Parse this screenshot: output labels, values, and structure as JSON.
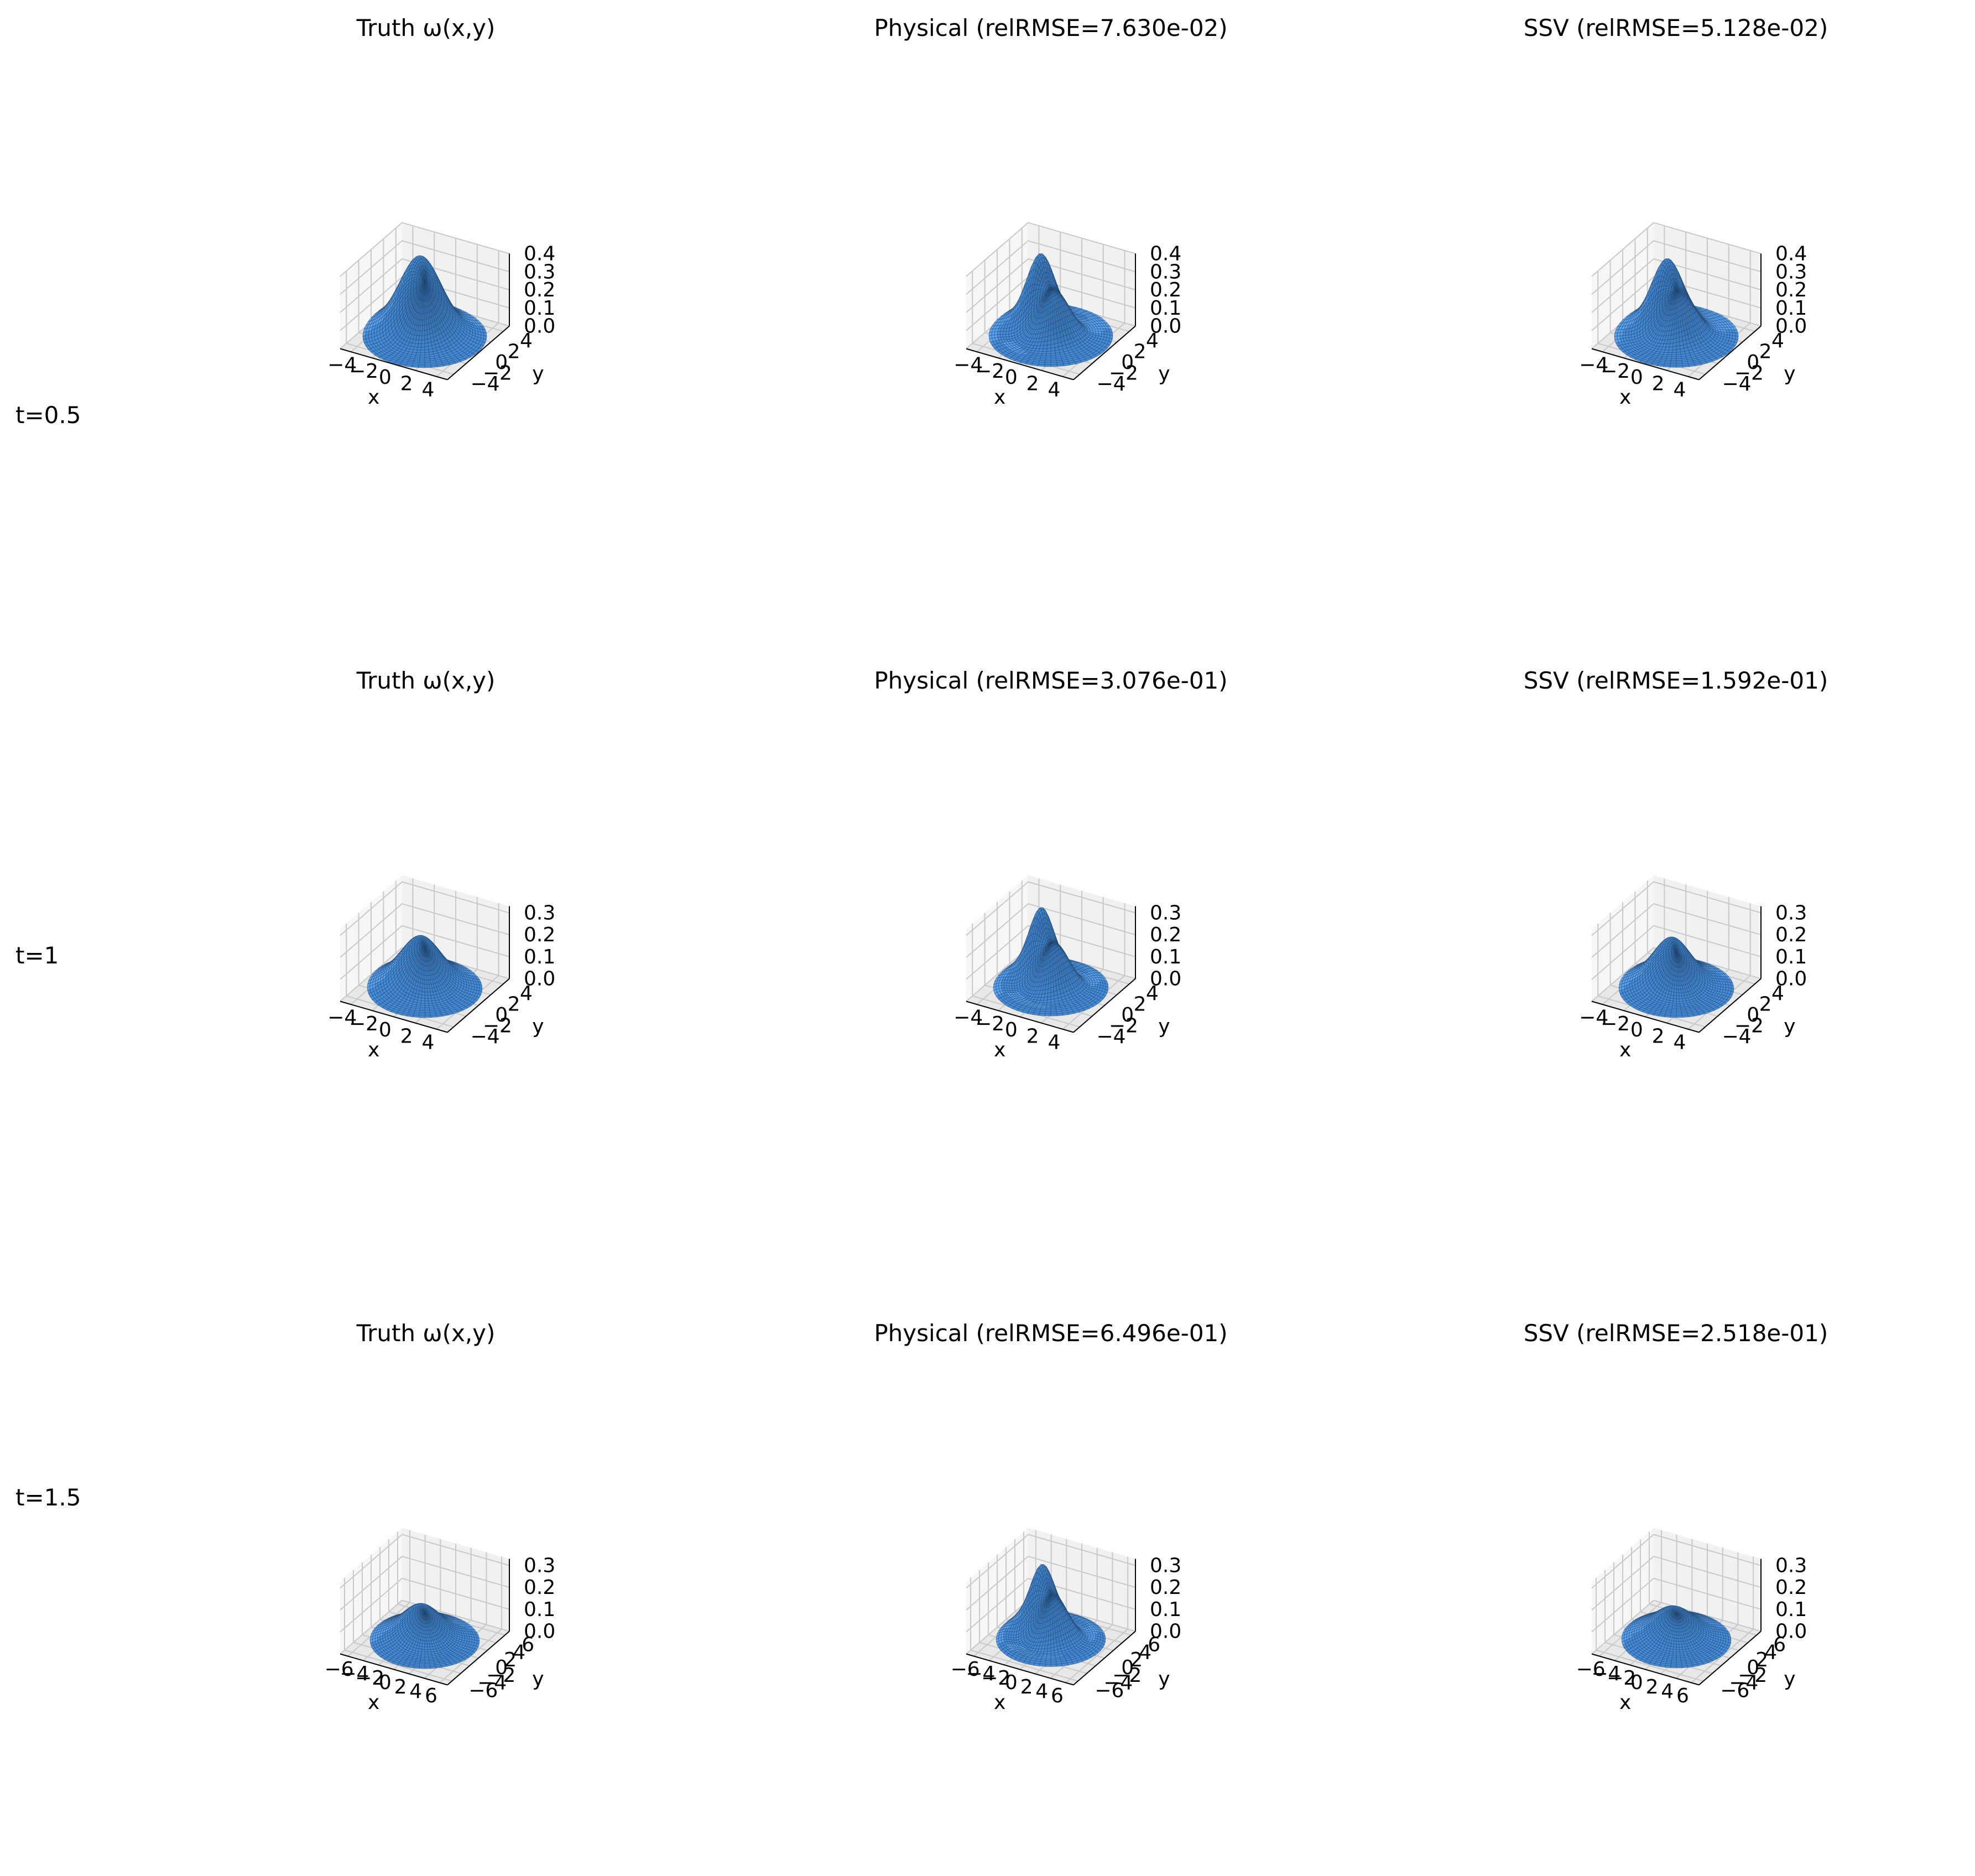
{
  "figure": {
    "row_labels": [
      "t=0.5",
      "t=1",
      "t=1.5"
    ]
  },
  "style": {
    "surface_color": "#3f7fc4",
    "edge_color": "#1d3f66",
    "pane_left": "#f6f6f6",
    "pane_right": "#f1f1f1",
    "pane_floor": "#e8e8e8",
    "grid_color": "#c9c9c9"
  },
  "chart_data": [
    {
      "type": "surface3d",
      "row": 0,
      "col": 0,
      "title": "Truth ω(x,y)",
      "xlabel": "x",
      "ylabel": "y",
      "xlim": [
        -5,
        5
      ],
      "ylim": [
        -5,
        5
      ],
      "zlim": [
        0,
        0.4
      ],
      "xticks": [
        "−4",
        "−2",
        "0",
        "2",
        "4"
      ],
      "yticks": [
        "−4",
        "−2",
        "0",
        "2",
        "4"
      ],
      "zticks": [
        "0.0",
        "0.1",
        "0.2",
        "0.3",
        "0.4"
      ],
      "peaks": [
        {
          "x": -1.4,
          "y": 1.2,
          "amp": 0.33,
          "sigma": 1.6
        },
        {
          "x": 0.6,
          "y": 0.3,
          "amp": 0.15,
          "sigma": 1.6
        }
      ],
      "ring": {
        "amp": 0.004,
        "radius": 4.2
      }
    },
    {
      "type": "surface3d",
      "row": 0,
      "col": 1,
      "title": "Physical  (relRMSE=7.630e-02)",
      "xlabel": "x",
      "ylabel": "y",
      "xlim": [
        -5,
        5
      ],
      "ylim": [
        -5,
        5
      ],
      "zlim": [
        0,
        0.4
      ],
      "xticks": [
        "−4",
        "−2",
        "0",
        "2",
        "4"
      ],
      "yticks": [
        "−4",
        "−2",
        "0",
        "2",
        "4"
      ],
      "zticks": [
        "0.0",
        "0.1",
        "0.2",
        "0.3",
        "0.4"
      ],
      "peaks": [
        {
          "x": -1.8,
          "y": 1.4,
          "amp": 0.37,
          "sigma": 1.15
        },
        {
          "x": 0.6,
          "y": -0.2,
          "amp": 0.24,
          "sigma": 1.3
        }
      ],
      "ring": {
        "amp": 0.015,
        "radius": 4.2
      }
    },
    {
      "type": "surface3d",
      "row": 0,
      "col": 2,
      "title": "SSV  (relRMSE=5.128e-02)",
      "xlabel": "x",
      "ylabel": "y",
      "xlim": [
        -5,
        5
      ],
      "ylim": [
        -5,
        5
      ],
      "zlim": [
        0,
        0.4
      ],
      "xticks": [
        "−4",
        "−2",
        "0",
        "2",
        "4"
      ],
      "yticks": [
        "−4",
        "−2",
        "0",
        "2",
        "4"
      ],
      "zticks": [
        "0.0",
        "0.1",
        "0.2",
        "0.3",
        "0.4"
      ],
      "peaks": [
        {
          "x": -1.7,
          "y": 1.3,
          "amp": 0.34,
          "sigma": 1.25
        },
        {
          "x": 0.6,
          "y": -0.1,
          "amp": 0.2,
          "sigma": 1.35
        }
      ],
      "ring": {
        "amp": 0.008,
        "radius": 4.2
      }
    },
    {
      "type": "surface3d",
      "row": 1,
      "col": 0,
      "title": "Truth ω(x,y)",
      "xlabel": "x",
      "ylabel": "y",
      "xlim": [
        -5.5,
        5.5
      ],
      "ylim": [
        -5.5,
        5.5
      ],
      "zlim": [
        0,
        0.33
      ],
      "xticks": [
        "−4",
        "−2",
        "0",
        "2",
        "4"
      ],
      "yticks": [
        "−4",
        "−2",
        "0",
        "2",
        "4"
      ],
      "zticks": [
        "0.0",
        "0.1",
        "0.2",
        "0.3"
      ],
      "peaks": [
        {
          "x": -0.8,
          "y": 0.6,
          "amp": 0.22,
          "sigma": 1.9
        }
      ],
      "ring": {
        "amp": 0.006,
        "radius": 4.3
      }
    },
    {
      "type": "surface3d",
      "row": 1,
      "col": 1,
      "title": "Physical  (relRMSE=3.076e-01)",
      "xlabel": "x",
      "ylabel": "y",
      "xlim": [
        -5.5,
        5.5
      ],
      "ylim": [
        -5.5,
        5.5
      ],
      "zlim": [
        0,
        0.33
      ],
      "xticks": [
        "−4",
        "−2",
        "0",
        "2",
        "4"
      ],
      "yticks": [
        "−4",
        "−2",
        "0",
        "2",
        "4"
      ],
      "zticks": [
        "0.0",
        "0.1",
        "0.2",
        "0.3"
      ],
      "peaks": [
        {
          "x": -1.9,
          "y": 1.5,
          "amp": 0.3,
          "sigma": 1.15
        },
        {
          "x": 0.6,
          "y": -0.1,
          "amp": 0.2,
          "sigma": 1.35
        }
      ],
      "ring": {
        "amp": 0.02,
        "radius": 4.3
      }
    },
    {
      "type": "surface3d",
      "row": 1,
      "col": 2,
      "title": "SSV  (relRMSE=1.592e-01)",
      "xlabel": "x",
      "ylabel": "y",
      "xlim": [
        -5.5,
        5.5
      ],
      "ylim": [
        -5.5,
        5.5
      ],
      "zlim": [
        0,
        0.33
      ],
      "xticks": [
        "−4",
        "−2",
        "0",
        "2",
        "4"
      ],
      "yticks": [
        "−4",
        "−2",
        "0",
        "2",
        "4"
      ],
      "zticks": [
        "0.0",
        "0.1",
        "0.2",
        "0.3"
      ],
      "peaks": [
        {
          "x": -0.9,
          "y": 0.7,
          "amp": 0.21,
          "sigma": 1.75
        }
      ],
      "ring": {
        "amp": 0.008,
        "radius": 4.3
      }
    },
    {
      "type": "surface3d",
      "row": 2,
      "col": 0,
      "title": "Truth ω(x,y)",
      "xlabel": "x",
      "ylabel": "y",
      "xlim": [
        -6,
        6
      ],
      "ylim": [
        -6,
        6
      ],
      "zlim": [
        0,
        0.33
      ],
      "xticks": [
        "−6",
        "−4",
        "−2",
        "0",
        "2",
        "4",
        "6"
      ],
      "yticks": [
        "−6",
        "−4",
        "−2",
        "0",
        "2",
        "4",
        "6"
      ],
      "zticks": [
        "0.0",
        "0.1",
        "0.2",
        "0.3"
      ],
      "peaks": [
        {
          "x": -0.8,
          "y": 0.6,
          "amp": 0.15,
          "sigma": 2.0
        }
      ],
      "ring": {
        "amp": 0.008,
        "radius": 4.5
      }
    },
    {
      "type": "surface3d",
      "row": 2,
      "col": 1,
      "title": "Physical  (relRMSE=6.496e-01)",
      "xlabel": "x",
      "ylabel": "y",
      "xlim": [
        -6,
        6
      ],
      "ylim": [
        -6,
        6
      ],
      "zlim": [
        0,
        0.33
      ],
      "xticks": [
        "−6",
        "−4",
        "−2",
        "0",
        "2",
        "4",
        "6"
      ],
      "yticks": [
        "−6",
        "−4",
        "−2",
        "0",
        "2",
        "4",
        "6"
      ],
      "zticks": [
        "0.0",
        "0.1",
        "0.2",
        "0.3"
      ],
      "peaks": [
        {
          "x": -1.9,
          "y": 1.5,
          "amp": 0.28,
          "sigma": 1.25
        },
        {
          "x": 0.6,
          "y": -0.1,
          "amp": 0.19,
          "sigma": 1.45
        }
      ],
      "ring": {
        "amp": 0.025,
        "radius": 4.5
      }
    },
    {
      "type": "surface3d",
      "row": 2,
      "col": 2,
      "title": "SSV  (relRMSE=2.518e-01)",
      "xlabel": "x",
      "ylabel": "y",
      "xlim": [
        -6,
        6
      ],
      "ylim": [
        -6,
        6
      ],
      "zlim": [
        0,
        0.33
      ],
      "xticks": [
        "−6",
        "−4",
        "−2",
        "0",
        "2",
        "4",
        "6"
      ],
      "yticks": [
        "−6",
        "−4",
        "−2",
        "0",
        "2",
        "4",
        "6"
      ],
      "zticks": [
        "0.0",
        "0.1",
        "0.2",
        "0.3"
      ],
      "peaks": [
        {
          "x": -0.7,
          "y": 0.5,
          "amp": 0.14,
          "sigma": 2.2
        }
      ],
      "ring": {
        "amp": 0.01,
        "radius": 4.5
      }
    }
  ]
}
